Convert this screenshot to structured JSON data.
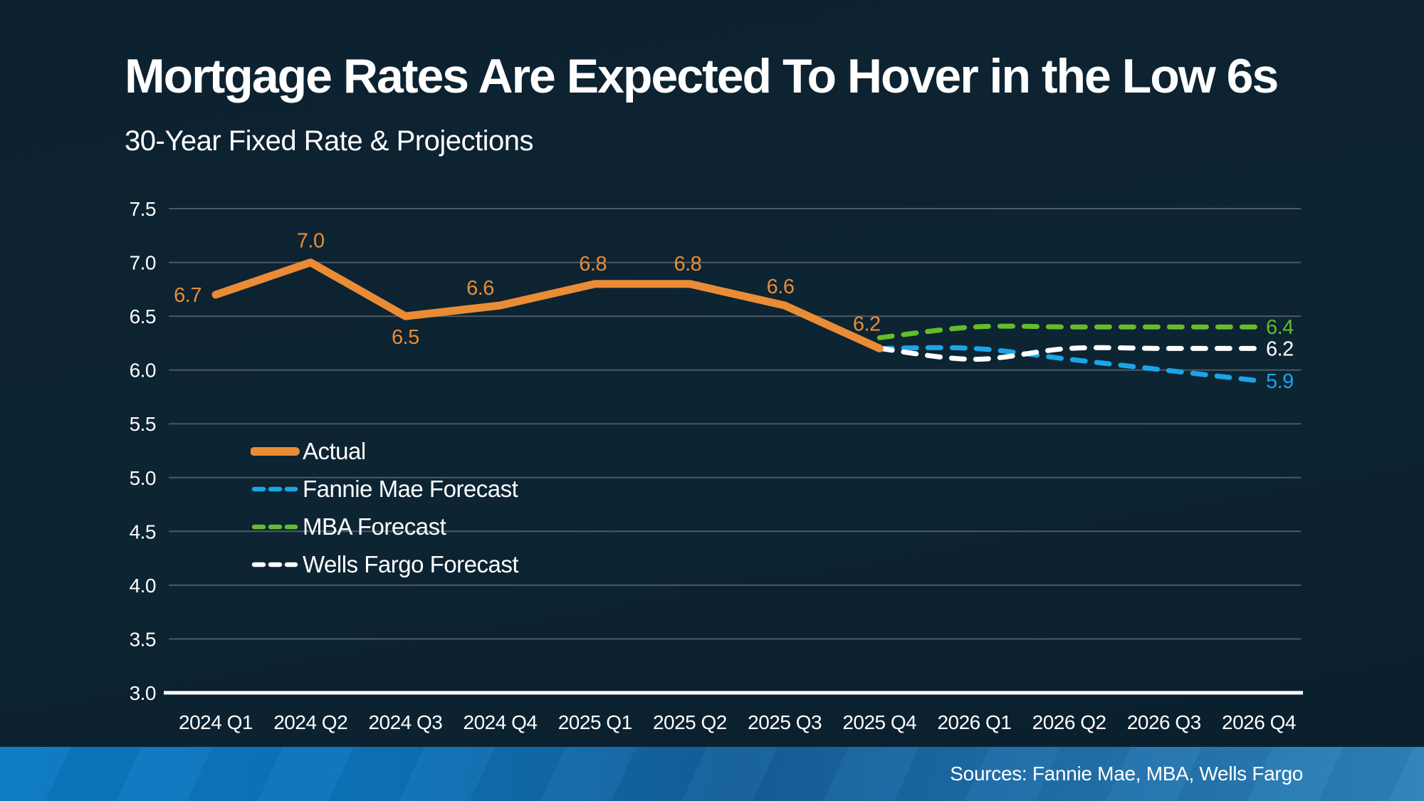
{
  "chart_data": {
    "type": "line",
    "title": "Mortgage Rates Are Expected To Hover in the Low 6s",
    "subtitle": "30-Year Fixed Rate & Projections",
    "categories": [
      "2024 Q1",
      "2024 Q2",
      "2024 Q3",
      "2024 Q4",
      "2025 Q1",
      "2025 Q2",
      "2025 Q3",
      "2025 Q4",
      "2026 Q1",
      "2026 Q2",
      "2026 Q3",
      "2026 Q4"
    ],
    "ylim": [
      3.0,
      7.5
    ],
    "ytick_step": 0.5,
    "grid": true,
    "legend_position": "inside-left-middle",
    "gridline_color": "#4d5967",
    "axis_baseline_color": "#ffffff",
    "axis_label_color": "#ffffff",
    "series": [
      {
        "name": "Actual",
        "color": "#EA8C35",
        "line_style": "solid",
        "start_index": 0,
        "values": [
          6.7,
          7.0,
          6.5,
          6.6,
          6.8,
          6.8,
          6.6,
          6.2
        ],
        "point_labels": [
          "6.7",
          "7.0",
          "6.5",
          "6.6",
          "6.8",
          "6.8",
          "6.6",
          "6.2"
        ]
      },
      {
        "name": "Fannie Mae Forecast",
        "color": "#1BA4E8",
        "line_style": "dashed",
        "start_index": 7,
        "values": [
          6.2,
          6.2,
          6.1,
          6.0,
          5.9
        ],
        "end_label": "5.9"
      },
      {
        "name": "MBA Forecast",
        "color": "#63BD2B",
        "line_style": "dashed",
        "start_index": 7,
        "values": [
          6.3,
          6.4,
          6.4,
          6.4,
          6.4
        ],
        "end_label": "6.4"
      },
      {
        "name": "Wells Fargo Forecast",
        "color": "#FFFFFF",
        "line_style": "dashed",
        "start_index": 7,
        "values": [
          6.2,
          6.1,
          6.2,
          6.2,
          6.2
        ],
        "end_label": "6.2"
      }
    ]
  },
  "footer": {
    "sources": "Sources: Fannie Mae, MBA, Wells Fargo",
    "bar_color_left": "#0a79c2",
    "bar_color_right": "#2e82ba"
  }
}
